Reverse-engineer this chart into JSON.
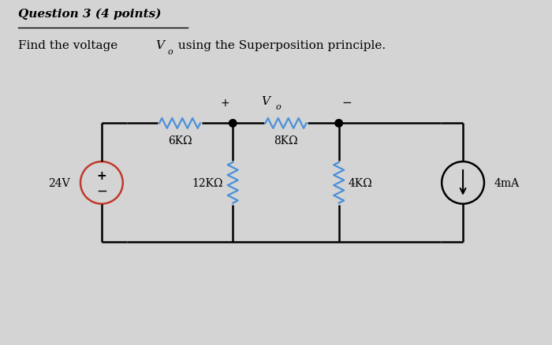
{
  "bg_color": "#d4d4d4",
  "circuit_color": "#000000",
  "blue": "#4a90d9",
  "red": "#c0392b",
  "title": "Question 3 (4 points)",
  "labels": {
    "6k": "6KΩ",
    "8k": "8KΩ",
    "12k": "12KΩ",
    "4k": "4KΩ",
    "24v": "24V",
    "4ma": "4mA"
  }
}
